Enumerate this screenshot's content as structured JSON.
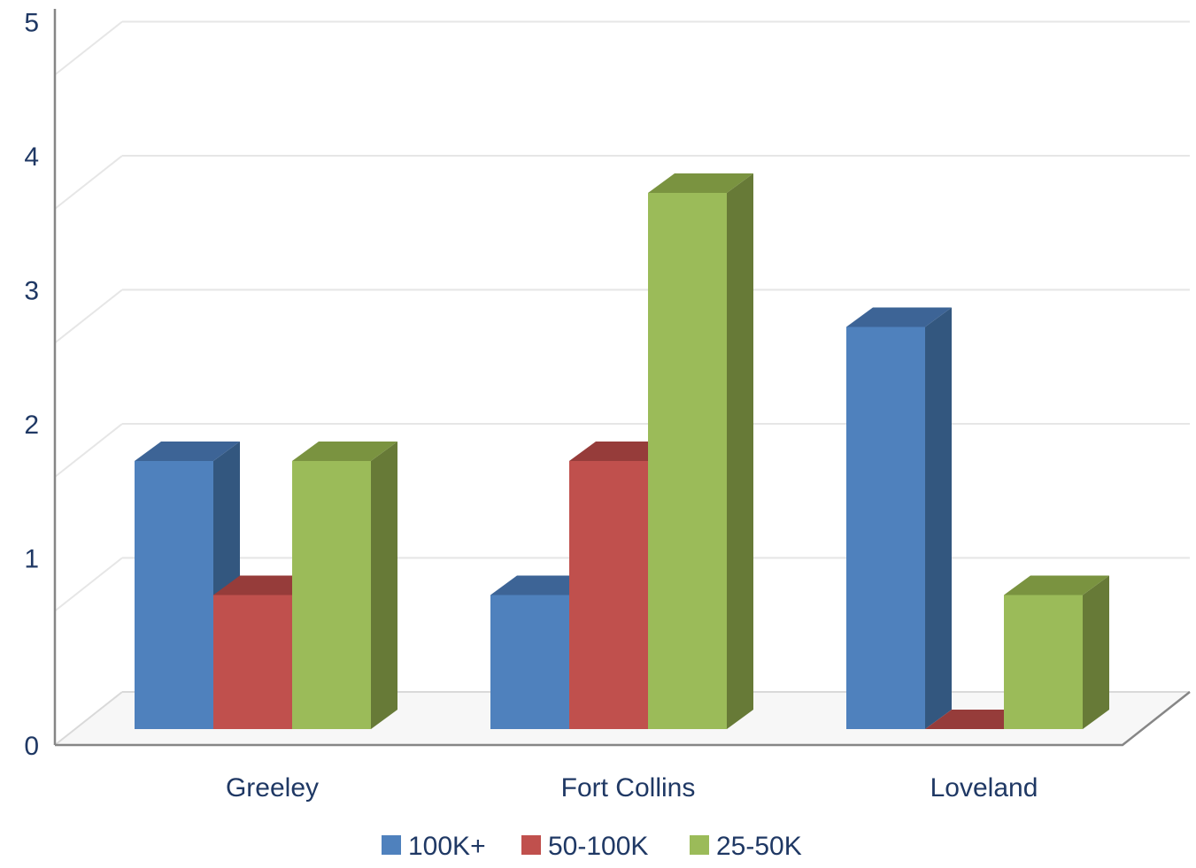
{
  "chart_data": {
    "type": "bar",
    "style": "3d-clustered-column",
    "categories": [
      "Greeley",
      "Fort Collins",
      "Loveland"
    ],
    "series": [
      {
        "name": "100K+",
        "values": [
          2,
          1,
          3
        ],
        "color": "#4f81bd",
        "side_color": "#33577f",
        "top_color": "#3d6496"
      },
      {
        "name": "50-100K",
        "values": [
          1,
          2,
          0
        ],
        "color": "#c0504d",
        "side_color": "#8c3836",
        "top_color": "#963c3a"
      },
      {
        "name": "25-50K",
        "values": [
          2,
          4,
          1
        ],
        "color": "#9bbb59",
        "side_color": "#677a37",
        "top_color": "#7a9340"
      }
    ],
    "y_ticks": [
      "0",
      "1",
      "2",
      "3",
      "4",
      "5"
    ],
    "ylim": [
      0,
      5
    ],
    "grid": true,
    "legend_position": "bottom"
  }
}
